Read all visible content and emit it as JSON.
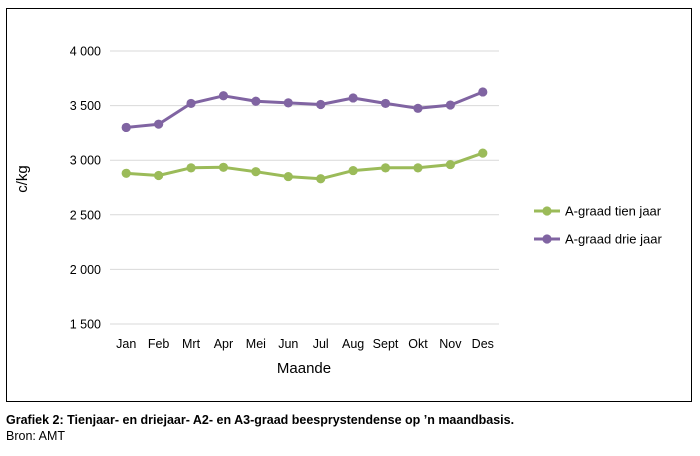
{
  "chart_data": {
    "type": "line",
    "categories": [
      "Jan",
      "Feb",
      "Mrt",
      "Apr",
      "Mei",
      "Jun",
      "Jul",
      "Aug",
      "Sept",
      "Okt",
      "Nov",
      "Des"
    ],
    "series": [
      {
        "name": "A-graad tien jaar",
        "color": "#9BBB59",
        "values": [
          2880,
          2860,
          2930,
          2935,
          2895,
          2850,
          2830,
          2905,
          2930,
          2930,
          2960,
          3065
        ]
      },
      {
        "name": "A-graad drie jaar",
        "color": "#8064A2",
        "values": [
          3300,
          3330,
          3520,
          3590,
          3540,
          3525,
          3510,
          3570,
          3520,
          3475,
          3505,
          3625
        ]
      }
    ],
    "yticks": [
      "4 000",
      "3 500",
      "3 000",
      "2 500",
      "2 000",
      "1 500"
    ],
    "ylim": [
      1500,
      4000
    ],
    "xlabel": "Maande",
    "ylabel": "c/kg",
    "grid": true,
    "legend_position": "right"
  },
  "caption": {
    "title": "Grafiek 2: Tienjaar- en driejaar- A2- en A3-graad beesprystendense op ’n maandbasis.",
    "source": "Bron: AMT"
  }
}
